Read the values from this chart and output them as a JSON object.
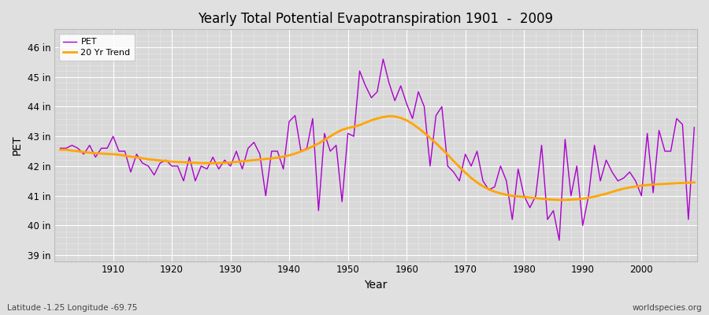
{
  "title": "Yearly Total Potential Evapotranspiration 1901  -  2009",
  "xlabel": "Year",
  "ylabel": "PET",
  "subtitle_left": "Latitude -1.25 Longitude -69.75",
  "subtitle_right": "worldspecies.org",
  "pet_color": "#AA00CC",
  "trend_color": "#FFA500",
  "bg_color": "#E0E0E0",
  "plot_bg_color": "#D8D8D8",
  "grid_color": "#FFFFFF",
  "ylim_min": 38.8,
  "ylim_max": 46.6,
  "xlim_min": 1900,
  "xlim_max": 2009.5,
  "yticks": [
    39,
    40,
    41,
    42,
    43,
    44,
    45,
    46
  ],
  "ytick_labels": [
    "39 in",
    "40 in",
    "41 in",
    "42 in",
    "43 in",
    "44 in",
    "45 in",
    "46 in"
  ],
  "xticks": [
    1910,
    1920,
    1930,
    1940,
    1950,
    1960,
    1970,
    1980,
    1990,
    2000
  ],
  "years": [
    1901,
    1902,
    1903,
    1904,
    1905,
    1906,
    1907,
    1908,
    1909,
    1910,
    1911,
    1912,
    1913,
    1914,
    1915,
    1916,
    1917,
    1918,
    1919,
    1920,
    1921,
    1922,
    1923,
    1924,
    1925,
    1926,
    1927,
    1928,
    1929,
    1930,
    1931,
    1932,
    1933,
    1934,
    1935,
    1936,
    1937,
    1938,
    1939,
    1940,
    1941,
    1942,
    1943,
    1944,
    1945,
    1946,
    1947,
    1948,
    1949,
    1950,
    1951,
    1952,
    1953,
    1954,
    1955,
    1956,
    1957,
    1958,
    1959,
    1960,
    1961,
    1962,
    1963,
    1964,
    1965,
    1966,
    1967,
    1968,
    1969,
    1970,
    1971,
    1972,
    1973,
    1974,
    1975,
    1976,
    1977,
    1978,
    1979,
    1980,
    1981,
    1982,
    1983,
    1984,
    1985,
    1986,
    1987,
    1988,
    1989,
    1990,
    1991,
    1992,
    1993,
    1994,
    1995,
    1996,
    1997,
    1998,
    1999,
    2000,
    2001,
    2002,
    2003,
    2004,
    2005,
    2006,
    2007,
    2008,
    2009
  ],
  "pet_values": [
    42.6,
    42.6,
    42.7,
    42.6,
    42.4,
    42.7,
    42.3,
    42.6,
    42.6,
    43.0,
    42.5,
    42.5,
    41.8,
    42.4,
    42.1,
    42.0,
    41.7,
    42.1,
    42.2,
    42.0,
    42.0,
    41.5,
    42.3,
    41.5,
    42.0,
    41.9,
    42.3,
    41.9,
    42.2,
    42.0,
    42.5,
    41.9,
    42.6,
    42.8,
    42.4,
    41.0,
    42.5,
    42.5,
    41.9,
    43.5,
    43.7,
    42.5,
    42.6,
    43.6,
    40.5,
    43.1,
    42.5,
    42.7,
    40.8,
    43.1,
    43.0,
    45.2,
    44.7,
    44.3,
    44.5,
    45.6,
    44.8,
    44.2,
    44.7,
    44.1,
    43.6,
    44.5,
    44.0,
    42.0,
    43.7,
    44.0,
    42.0,
    41.8,
    41.5,
    42.4,
    42.0,
    42.5,
    41.5,
    41.2,
    41.3,
    42.0,
    41.5,
    40.2,
    41.9,
    41.0,
    40.6,
    41.0,
    42.7,
    40.2,
    40.5,
    39.5,
    42.9,
    41.0,
    42.0,
    40.0,
    41.0,
    42.7,
    41.5,
    42.2,
    41.8,
    41.5,
    41.6,
    41.8,
    41.5,
    41.0,
    43.1,
    41.1,
    43.2,
    42.5,
    42.5,
    43.6,
    43.4,
    40.2,
    43.3
  ],
  "trend_values": [
    42.55,
    42.55,
    42.52,
    42.5,
    42.47,
    42.45,
    42.43,
    42.42,
    42.41,
    42.4,
    42.38,
    42.35,
    42.32,
    42.29,
    42.26,
    42.23,
    42.21,
    42.19,
    42.17,
    42.15,
    42.14,
    42.13,
    42.12,
    42.11,
    42.1,
    42.1,
    42.1,
    42.1,
    42.11,
    42.12,
    42.14,
    42.16,
    42.18,
    42.2,
    42.22,
    42.24,
    42.26,
    42.28,
    42.32,
    42.36,
    42.42,
    42.49,
    42.57,
    42.66,
    42.76,
    42.88,
    43.0,
    43.12,
    43.22,
    43.28,
    43.32,
    43.38,
    43.46,
    43.54,
    43.6,
    43.65,
    43.68,
    43.67,
    43.62,
    43.54,
    43.42,
    43.28,
    43.12,
    42.95,
    42.77,
    42.58,
    42.38,
    42.17,
    41.97,
    41.78,
    41.6,
    41.45,
    41.32,
    41.22,
    41.14,
    41.08,
    41.03,
    41.0,
    40.98,
    40.96,
    40.94,
    40.92,
    40.9,
    40.88,
    40.87,
    40.86,
    40.86,
    40.87,
    40.88,
    40.9,
    40.93,
    40.97,
    41.02,
    41.07,
    41.13,
    41.19,
    41.24,
    41.28,
    41.31,
    41.34,
    41.36,
    41.38,
    41.39,
    41.4,
    41.41,
    41.42,
    41.43,
    41.44,
    41.45
  ]
}
